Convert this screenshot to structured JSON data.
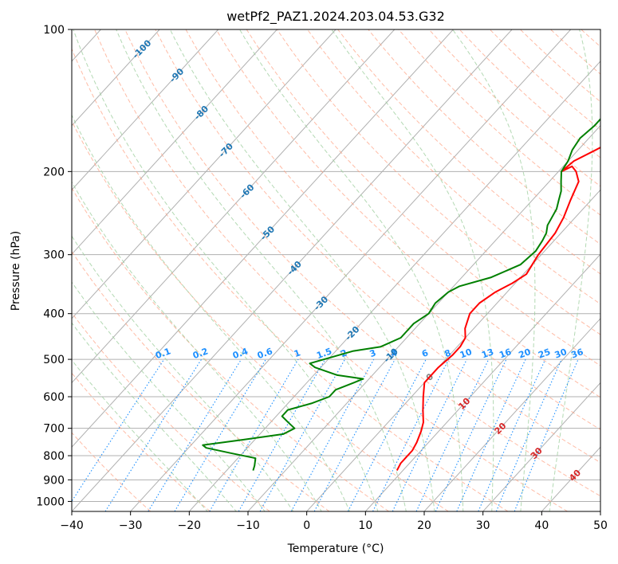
{
  "chart_data": {
    "type": "line",
    "title": "wetPf2_PAZ1.2024.203.04.53.G32",
    "xlabel": "Temperature (°C)",
    "ylabel": "Pressure (hPa)",
    "xlim": [
      -40,
      50
    ],
    "ylim": [
      1050,
      100
    ],
    "y_scale": "log",
    "grid": true,
    "x_ticks": [
      -40,
      -30,
      -20,
      -10,
      0,
      10,
      20,
      30,
      40,
      50
    ],
    "x_tick_labels": [
      "−40",
      "−30",
      "−20",
      "−10",
      "0",
      "10",
      "20",
      "30",
      "40",
      "50"
    ],
    "y_ticks": [
      100,
      200,
      300,
      400,
      500,
      600,
      700,
      800,
      900,
      1000
    ],
    "y_tick_labels": [
      "100",
      "200",
      "300",
      "400",
      "500",
      "600",
      "700",
      "800",
      "900",
      "1000"
    ],
    "colors": {
      "temperature": "#ff0000",
      "dewpoint": "#008000",
      "isotherm": "#b0b0b0",
      "dry_adiabat": "#ff9f80",
      "moist_adiabat": "#a0d0a0",
      "mixing_ratio": "#1e90ff",
      "isotherm_label": "#1f77b4",
      "warm_label": "#d62728"
    },
    "series": [
      {
        "key": "temperature",
        "x": [
          9,
          8.5,
          8.5,
          8,
          7,
          6,
          4,
          2,
          0,
          0,
          0.5,
          0.5,
          0,
          -1.5,
          -3,
          -3,
          -2,
          -0.5,
          0.5,
          -0.5,
          -1,
          -2,
          -3.5,
          -5,
          -7,
          -8.5,
          -9.5,
          -9,
          -7,
          -5,
          -3,
          2,
          6,
          8,
          10,
          13
        ],
        "y": [
          860,
          830,
          780,
          750,
          710,
          680,
          640,
          600,
          560,
          520,
          490,
          470,
          450,
          430,
          400,
          380,
          360,
          345,
          330,
          300,
          270,
          250,
          230,
          210,
          200,
          195,
          200,
          190,
          180,
          170,
          160,
          145,
          130,
          120,
          110,
          100
        ]
      },
      {
        "key": "dewpoint",
        "x": [
          -15.5,
          -16,
          -17,
          -22,
          -27,
          -28,
          -22,
          -16,
          -15,
          -17,
          -19,
          -19,
          -16,
          -14,
          -14,
          -12,
          -11,
          -16,
          -21,
          -22.5,
          -17,
          -13,
          -11,
          -11,
          -10,
          -10.5,
          -10,
          -9,
          -5,
          -2,
          -1.5,
          -2,
          -2.5,
          -3.5,
          -4.5,
          -5.5,
          -6.5,
          -8,
          -9.5,
          -10,
          -11,
          -11.5,
          -11,
          -11,
          -12,
          -11,
          -8,
          -4.5,
          -1
        ],
        "y": [
          860,
          840,
          810,
          790,
          770,
          760,
          740,
          720,
          700,
          680,
          660,
          640,
          620,
          600,
          580,
          560,
          550,
          540,
          520,
          510,
          480,
          470,
          450,
          420,
          400,
          380,
          360,
          350,
          335,
          315,
          295,
          280,
          270,
          260,
          240,
          230,
          220,
          210,
          200,
          190,
          180,
          170,
          160,
          150,
          140,
          130,
          120,
          110,
          100
        ]
      }
    ],
    "isotherm_labels": [
      "-100",
      "-90",
      "-80",
      "-70",
      "-60",
      "-50",
      "-40",
      "-30",
      "-20",
      "-10"
    ],
    "mixing_ratio_labels": [
      "0.1",
      "0.2",
      "0.4",
      "0.6",
      "1",
      "1.5",
      "2",
      "3",
      "4",
      "6",
      "8",
      "10",
      "13",
      "16",
      "20",
      "25",
      "30",
      "36"
    ],
    "warm_isotherm_labels": [
      "0",
      "10",
      "20",
      "30",
      "40"
    ]
  }
}
